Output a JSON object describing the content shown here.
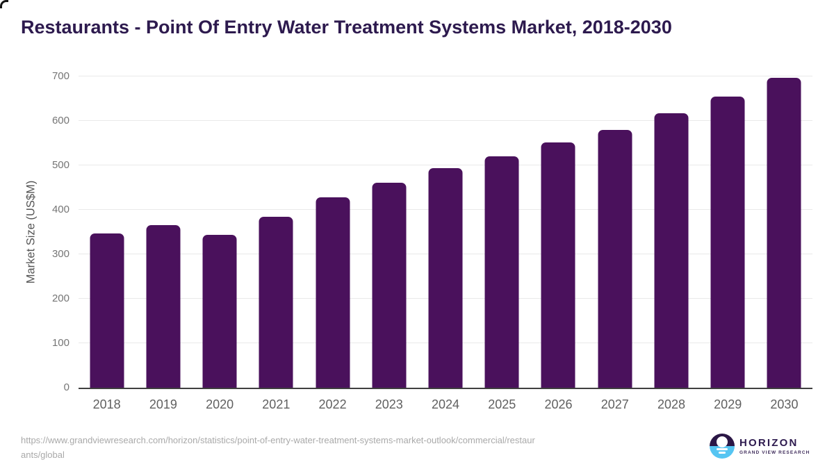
{
  "title": "Restaurants - Point Of Entry Water Treatment Systems Market, 2018-2030",
  "chart_data": {
    "type": "bar",
    "title": "Restaurants - Point Of Entry Water Treatment Systems Market, 2018-2030",
    "categories": [
      "2018",
      "2019",
      "2020",
      "2021",
      "2022",
      "2023",
      "2024",
      "2025",
      "2026",
      "2027",
      "2028",
      "2029",
      "2030"
    ],
    "values": [
      347,
      365,
      343,
      385,
      428,
      461,
      493,
      520,
      551,
      579,
      617,
      655,
      697
    ],
    "xlabel": "",
    "ylabel": "Market Size (US$M)",
    "ylim": [
      0,
      700
    ],
    "ytick_step": 100,
    "yticks": [
      0,
      100,
      200,
      300,
      400,
      500,
      600,
      700
    ],
    "grid": "horizontal",
    "legend_position": "none",
    "bar_color": "#4a115c",
    "gridline_color": "#e9e9e9",
    "axis_line_color": "#3f3f3f",
    "tick_label_color": "#757575",
    "x_label_color": "#606060",
    "title_color": "#2d1a4e"
  },
  "footer": {
    "source_url_line1": "https://www.grandviewresearch.com/horizon/statistics/point-of-entry-water-treatment-systems-market-outlook/commercial/restaur",
    "source_url_line2": "ants/global",
    "logo": {
      "name": "HORIZON",
      "subtext": "GRAND VIEW RESEARCH",
      "mark_top_color": "#2b1746",
      "mark_bottom_color": "#56c5f2"
    }
  }
}
